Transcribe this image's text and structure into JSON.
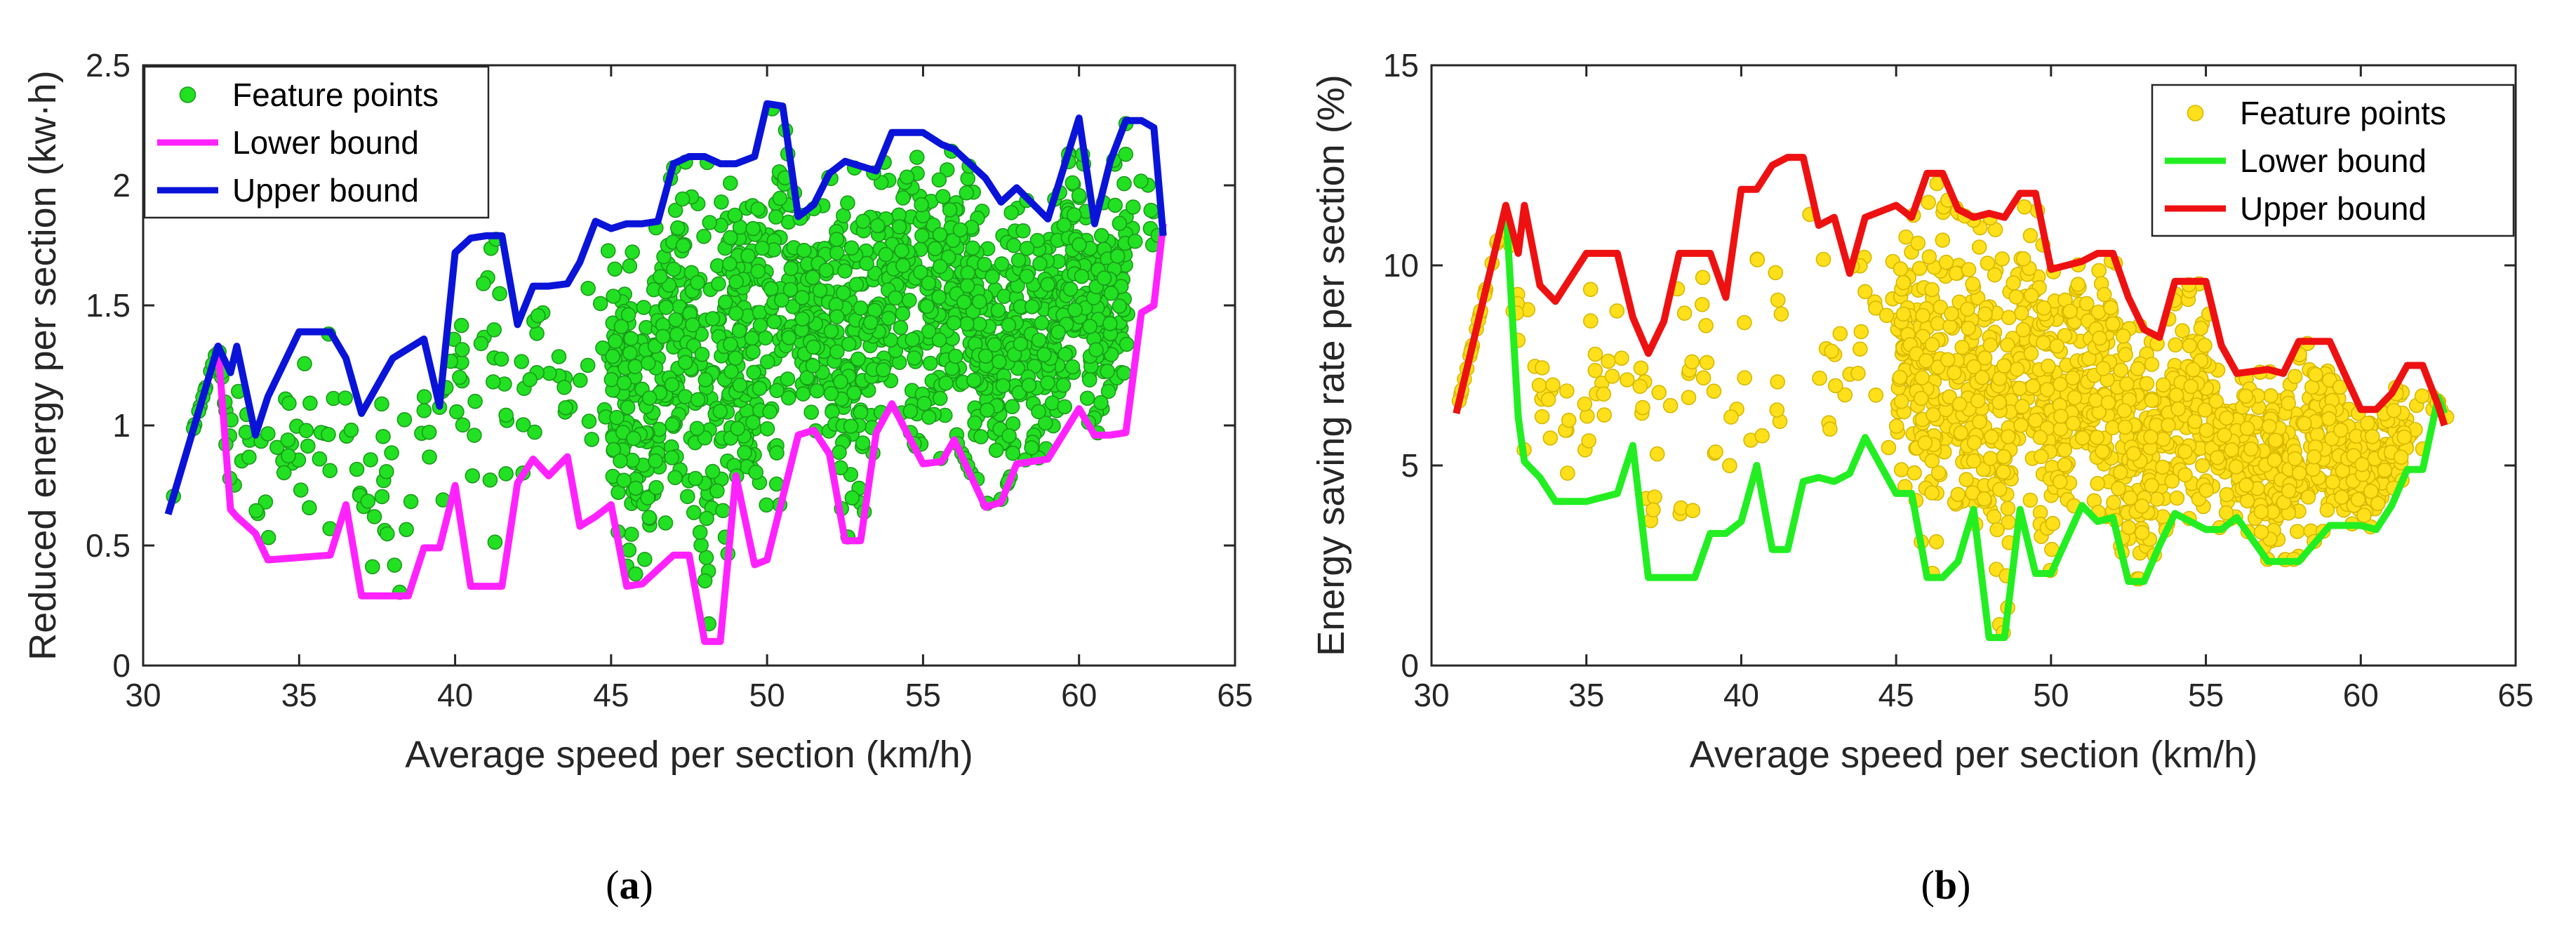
{
  "panels": [
    {
      "id": "a",
      "caption_letter": "a",
      "caption_open": "(",
      "caption_close": ")"
    },
    {
      "id": "b",
      "caption_letter": "b",
      "caption_open": "(",
      "caption_close": ")"
    }
  ],
  "colors": {
    "a_points": "#22e022",
    "a_points_edge": "#1a9a1a",
    "a_lower": "#ff22ff",
    "a_upper": "#0a14d8",
    "b_points": "#ffe01a",
    "b_points_edge": "#d6b800",
    "b_lower": "#22ee22",
    "b_upper": "#ee1111"
  },
  "chart_data": [
    {
      "type": "scatter",
      "panel": "a",
      "title": "",
      "xlabel": "Average speed per section (km/h)",
      "ylabel": "Reduced energy per section (kw·h)",
      "xlim": [
        30,
        65
      ],
      "ylim": [
        0,
        2.5
      ],
      "xticks": [
        30,
        35,
        40,
        45,
        50,
        55,
        60,
        65
      ],
      "yticks": [
        0,
        0.5,
        1,
        1.5,
        2,
        2.5
      ],
      "xtick_labels": [
        "30",
        "35",
        "40",
        "45",
        "50",
        "55",
        "60",
        "65"
      ],
      "ytick_labels": [
        "0",
        "0.5",
        "1",
        "1.5",
        "2",
        "2.5"
      ],
      "legend_position": "top-left",
      "legend": [
        "Feature points",
        "Lower bound",
        "Upper bound"
      ],
      "series": [
        {
          "name": "Lower bound",
          "x": [
            30.8,
            32.4,
            32.8,
            33.0,
            33.6,
            34.0,
            35.0,
            36.0,
            36.5,
            37.0,
            38.5,
            39.0,
            39.5,
            40.0,
            40.5,
            41.5,
            42.0,
            42.5,
            43.0,
            43.6,
            44.0,
            44.5,
            45.0,
            45.5,
            46.0,
            46.5,
            47.0,
            47.5,
            48.0,
            48.5,
            49.0,
            49.6,
            50.0,
            51.0,
            51.5,
            52.0,
            52.5,
            53.0,
            53.5,
            54.0,
            55.0,
            55.6,
            56.0,
            57.0,
            57.5,
            58.0,
            59.0,
            60.0,
            60.5,
            61.0,
            61.5,
            62.0,
            62.4,
            62.7
          ],
          "y": [
            0.63,
            1.33,
            0.65,
            0.62,
            0.55,
            0.44,
            0.45,
            0.46,
            0.67,
            0.29,
            0.29,
            0.49,
            0.49,
            0.75,
            0.33,
            0.33,
            0.76,
            0.86,
            0.79,
            0.87,
            0.58,
            0.62,
            0.67,
            0.33,
            0.34,
            0.4,
            0.46,
            0.46,
            0.1,
            0.1,
            0.79,
            0.42,
            0.44,
            0.96,
            0.98,
            0.88,
            0.52,
            0.52,
            0.97,
            1.09,
            0.84,
            0.85,
            0.94,
            0.66,
            0.68,
            0.84,
            0.86,
            1.07,
            0.96,
            0.96,
            0.97,
            1.47,
            1.5,
            1.84
          ]
        },
        {
          "name": "Upper bound",
          "x": [
            30.8,
            32.4,
            32.8,
            33.0,
            33.6,
            34.0,
            35.0,
            36.0,
            36.5,
            37.0,
            38.0,
            39.0,
            39.5,
            40.0,
            40.5,
            41.0,
            41.5,
            42.0,
            42.5,
            43.0,
            43.6,
            44.0,
            44.5,
            45.0,
            45.5,
            46.0,
            46.5,
            47.0,
            47.5,
            48.0,
            48.5,
            49.0,
            49.6,
            50.0,
            50.5,
            51.0,
            51.5,
            52.0,
            52.5,
            53.0,
            53.5,
            54.0,
            55.0,
            55.6,
            56.0,
            57.0,
            57.5,
            58.0,
            59.0,
            60.0,
            60.5,
            61.0,
            61.5,
            62.0,
            62.4,
            62.7
          ],
          "y": [
            0.63,
            1.33,
            1.22,
            1.33,
            0.96,
            1.12,
            1.39,
            1.39,
            1.28,
            1.05,
            1.28,
            1.36,
            1.08,
            1.72,
            1.78,
            1.79,
            1.79,
            1.42,
            1.58,
            1.58,
            1.59,
            1.68,
            1.85,
            1.82,
            1.84,
            1.84,
            1.85,
            2.09,
            2.12,
            2.12,
            2.09,
            2.09,
            2.12,
            2.34,
            2.33,
            1.87,
            1.92,
            2.05,
            2.1,
            2.08,
            2.06,
            2.22,
            2.22,
            2.17,
            2.15,
            2.03,
            1.93,
            1.99,
            1.86,
            2.28,
            1.84,
            2.1,
            2.27,
            2.27,
            2.24,
            1.79
          ]
        }
      ],
      "feature_points": {
        "name": "Feature points",
        "count": 1600,
        "x_range": [
          30.8,
          62.8
        ],
        "note": "dense scatter between lower and upper bound"
      }
    },
    {
      "type": "scatter",
      "panel": "b",
      "title": "",
      "xlabel": "Average speed per section (km/h)",
      "ylabel": "Energy saving rate per section (%)",
      "xlim": [
        30,
        65
      ],
      "ylim": [
        0,
        15
      ],
      "xticks": [
        30,
        35,
        40,
        45,
        50,
        55,
        60,
        65
      ],
      "yticks": [
        0,
        5,
        10,
        15
      ],
      "xtick_labels": [
        "30",
        "35",
        "40",
        "45",
        "50",
        "55",
        "60",
        "65"
      ],
      "ytick_labels": [
        "0",
        "5",
        "10",
        "15"
      ],
      "legend_position": "top-right",
      "legend": [
        "Feature points",
        "Lower bound",
        "Upper bound"
      ],
      "series": [
        {
          "name": "Lower bound",
          "x": [
            30.8,
            32.4,
            32.8,
            33.0,
            33.5,
            34.0,
            35.0,
            36.0,
            36.5,
            37.0,
            38.5,
            39.0,
            39.5,
            40.0,
            40.5,
            41.0,
            41.5,
            42.0,
            42.5,
            43.0,
            43.5,
            44.0,
            45.0,
            45.5,
            46.0,
            46.5,
            47.0,
            47.5,
            48.0,
            48.5,
            49.0,
            49.5,
            50.0,
            51.0,
            51.5,
            52.0,
            52.5,
            53.0,
            53.5,
            54.0,
            55.0,
            55.5,
            56.0,
            57.0,
            57.5,
            58.0,
            59.0,
            60.0,
            60.5,
            61.0,
            61.5,
            62.0,
            62.5,
            62.7
          ],
          "y": [
            6.3,
            11.5,
            6.2,
            5.1,
            4.7,
            4.1,
            4.1,
            4.3,
            5.5,
            2.2,
            2.2,
            3.3,
            3.3,
            3.6,
            5.0,
            2.9,
            2.9,
            4.6,
            4.7,
            4.6,
            4.8,
            5.7,
            4.3,
            4.3,
            2.2,
            2.2,
            2.6,
            3.9,
            0.7,
            0.7,
            3.9,
            2.3,
            2.3,
            4.0,
            3.6,
            3.7,
            2.1,
            2.1,
            3.0,
            3.8,
            3.4,
            3.4,
            3.7,
            2.6,
            2.6,
            2.6,
            3.5,
            3.5,
            3.4,
            4.0,
            4.9,
            4.9,
            6.7,
            6.3
          ]
        },
        {
          "name": "Upper bound",
          "x": [
            30.8,
            32.4,
            32.8,
            33.0,
            33.5,
            34.0,
            35.0,
            36.0,
            36.5,
            37.0,
            37.5,
            38.0,
            39.0,
            39.5,
            40.0,
            40.5,
            41.0,
            41.5,
            42.0,
            42.5,
            43.0,
            43.5,
            44.0,
            45.0,
            45.5,
            46.0,
            46.5,
            47.0,
            47.5,
            48.0,
            48.5,
            49.0,
            49.5,
            50.0,
            51.0,
            51.5,
            52.0,
            52.5,
            53.0,
            53.5,
            54.0,
            55.0,
            55.5,
            56.0,
            57.0,
            57.5,
            58.0,
            59.0,
            60.0,
            60.5,
            61.0,
            61.5,
            62.0,
            62.5,
            62.7
          ],
          "y": [
            6.3,
            11.5,
            10.3,
            11.5,
            9.5,
            9.1,
            10.3,
            10.3,
            8.7,
            7.8,
            8.6,
            10.3,
            10.3,
            9.2,
            11.9,
            11.9,
            12.5,
            12.7,
            12.7,
            11.0,
            11.2,
            9.8,
            11.2,
            11.5,
            11.2,
            12.3,
            12.3,
            11.4,
            11.2,
            11.3,
            11.2,
            11.8,
            11.8,
            9.9,
            10.1,
            10.3,
            10.3,
            9.2,
            8.4,
            8.2,
            9.6,
            9.6,
            8.0,
            7.3,
            7.4,
            7.3,
            8.1,
            8.1,
            6.4,
            6.4,
            6.8,
            7.5,
            7.5,
            6.5,
            6.0
          ]
        }
      ],
      "feature_points": {
        "name": "Feature points",
        "count": 1600,
        "x_range": [
          30.8,
          62.8
        ],
        "note": "dense scatter between lower and upper bound"
      }
    }
  ]
}
